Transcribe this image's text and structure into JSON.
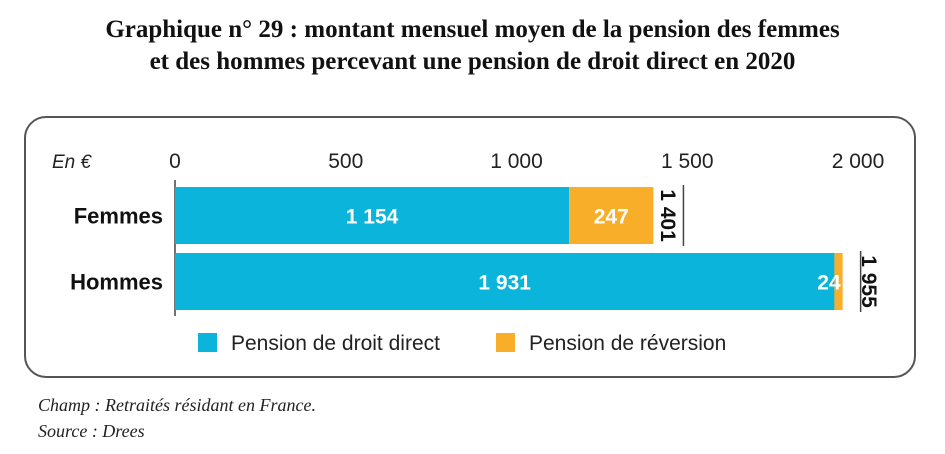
{
  "header": {
    "title_line1": "Graphique n° 29 : montant mensuel moyen de la pension des femmes",
    "title_line2": "et des hommes percevant une pension de droit direct en 2020"
  },
  "notes": {
    "champ": "Champ : Retraités résidant en France.",
    "source": "Source : Drees"
  },
  "chart_data": {
    "type": "bar",
    "orientation": "horizontal",
    "stacked": true,
    "unit_label": "En €",
    "categories": [
      "Femmes",
      "Hommes"
    ],
    "series": [
      {
        "name": "Pension de droit direct",
        "values": [
          1154,
          1931
        ],
        "labels": [
          "1 154",
          "1 931"
        ],
        "color": "#0AB4DA"
      },
      {
        "name": "Pension de réversion",
        "values": [
          247,
          24
        ],
        "labels": [
          "247",
          "24"
        ],
        "color": "#F9AE2A"
      }
    ],
    "totals": [
      1401,
      1955
    ],
    "total_labels": [
      "1 401",
      "1 955"
    ],
    "xlim": [
      0,
      2000
    ],
    "xticks": [
      0,
      500,
      1000,
      1500,
      2000
    ],
    "xtick_labels": [
      "0",
      "500",
      "1 000",
      "1 500",
      "2 000"
    ],
    "legend_position": "bottom",
    "grid": false
  }
}
